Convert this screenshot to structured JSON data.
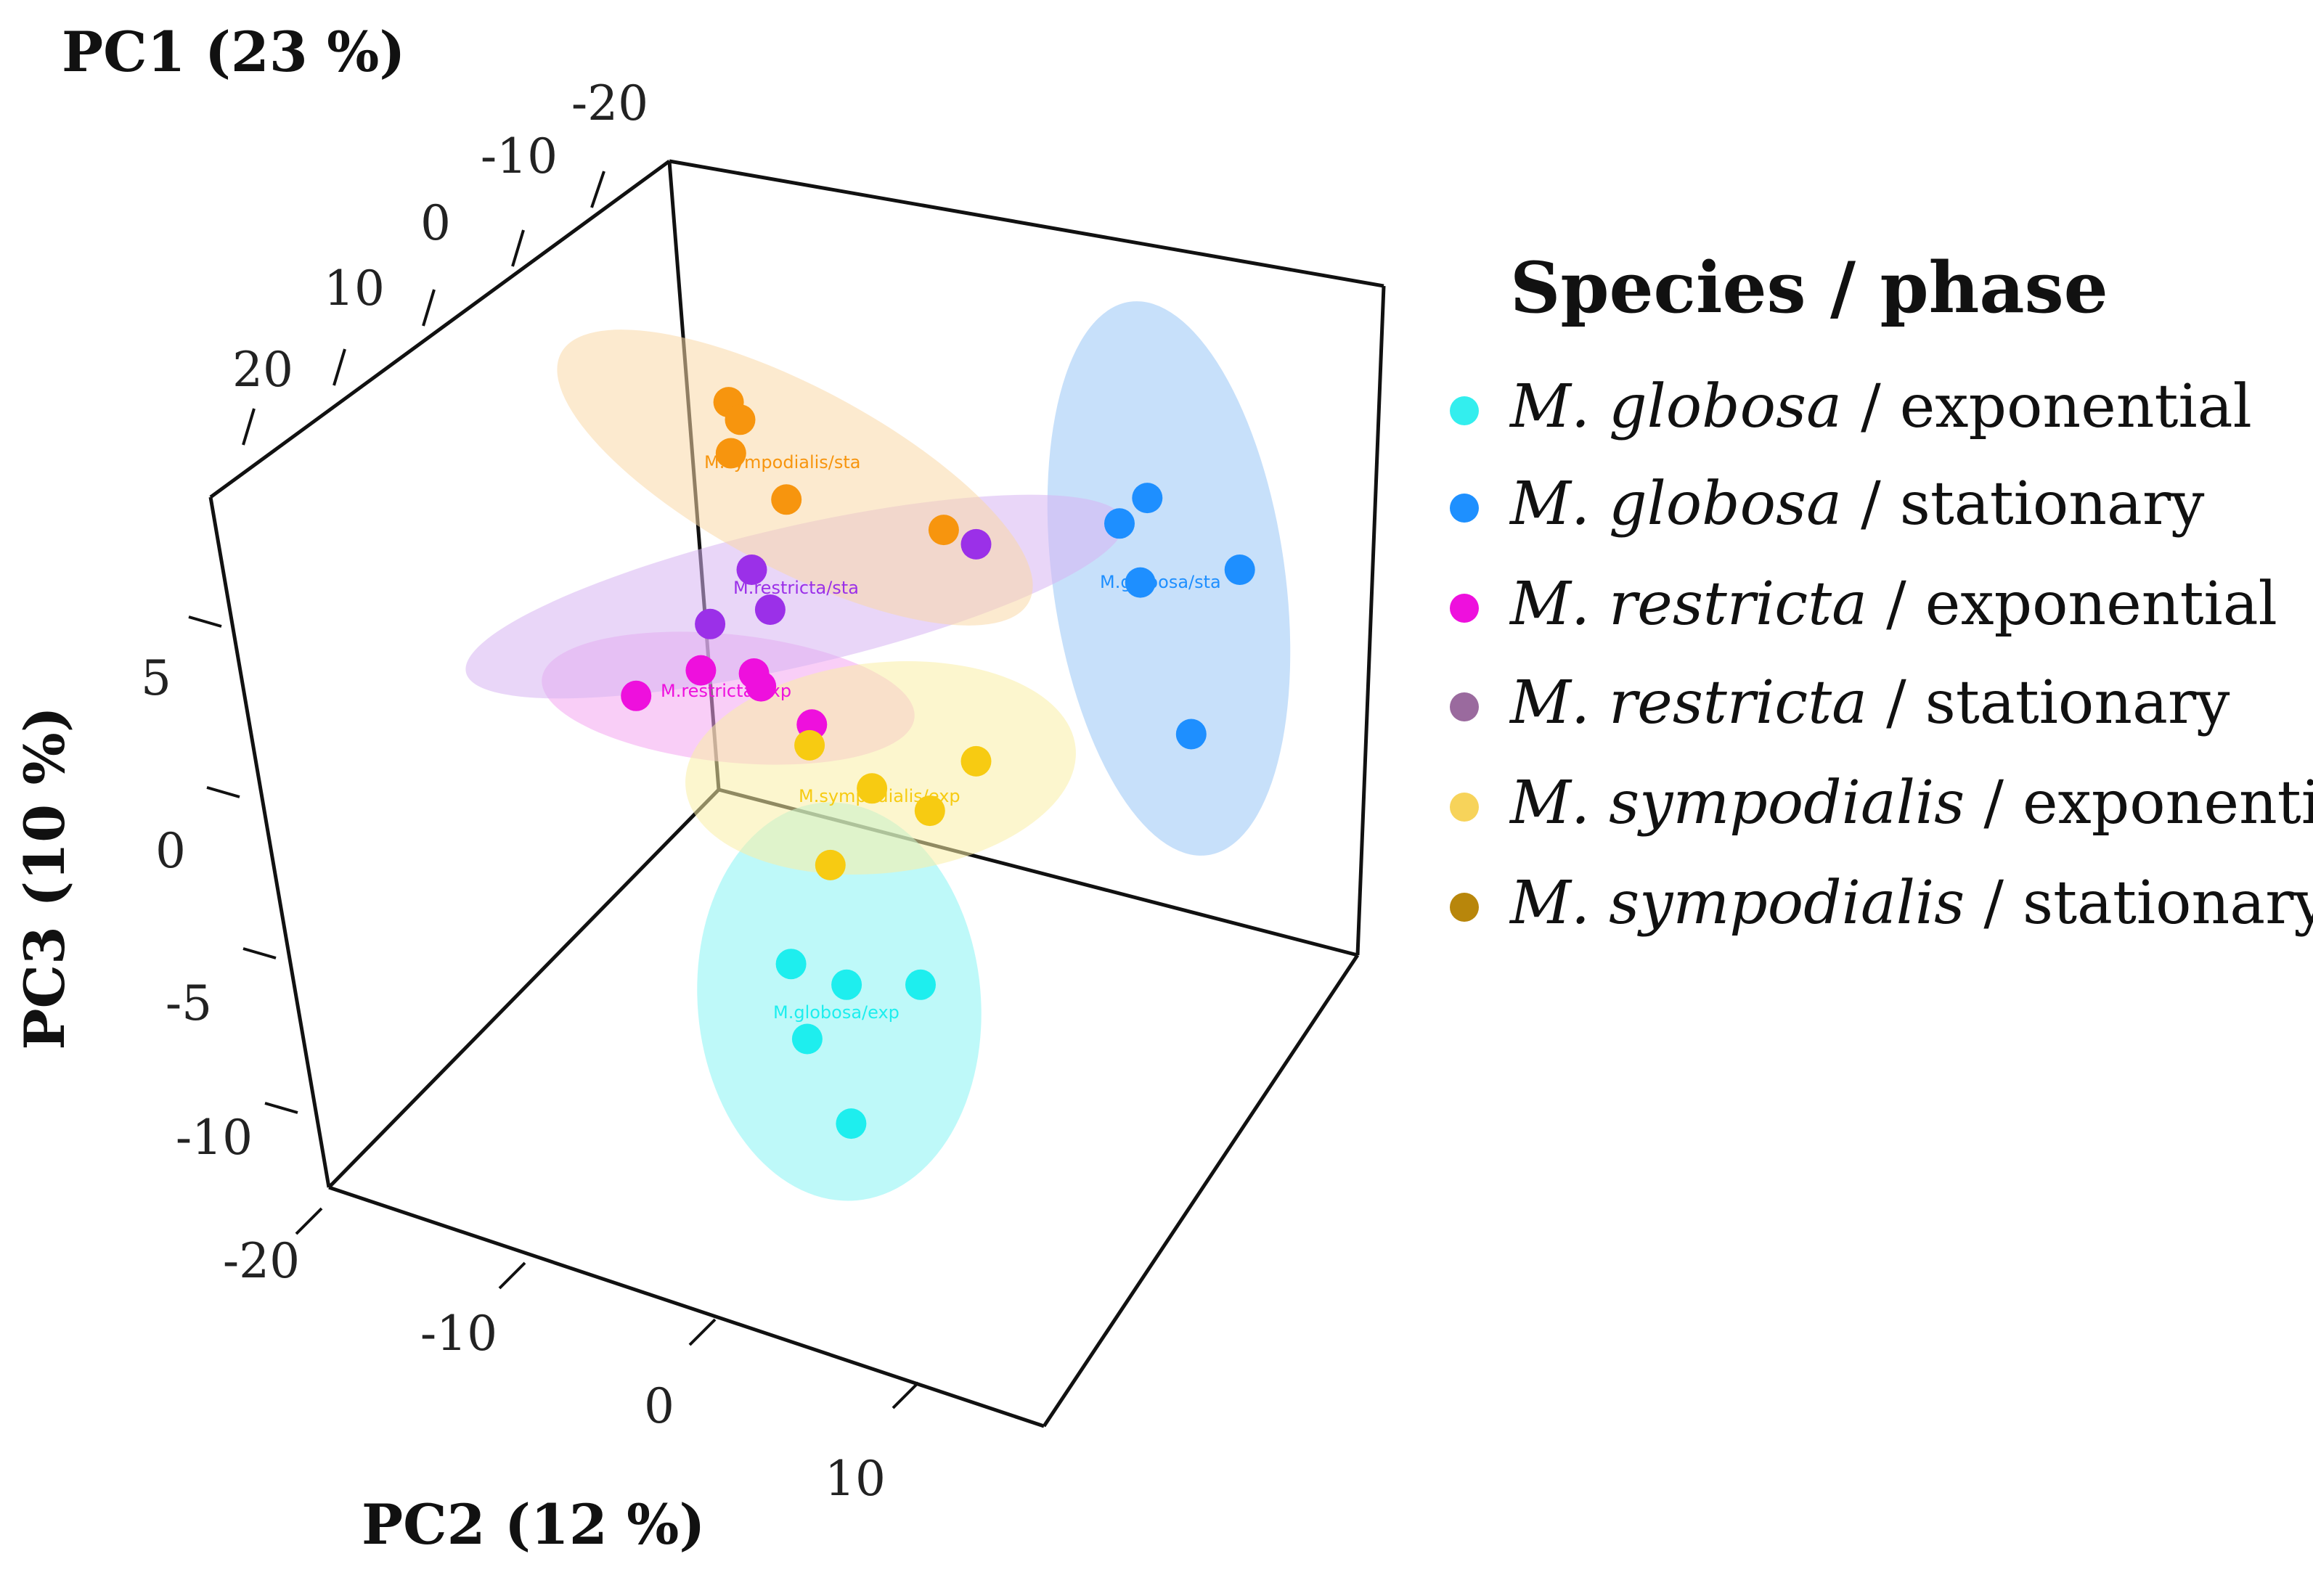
{
  "chart_data": {
    "type": "scatter",
    "subtype": "3d-pca",
    "axes": {
      "pc1": {
        "label": "PC1 (23 %)",
        "ticks": [
          "-20",
          "-10",
          "0",
          "10",
          "20"
        ]
      },
      "pc2": {
        "label": "PC2 (12 %)",
        "ticks": [
          "-20",
          "-10",
          "0",
          "10"
        ]
      },
      "pc3": {
        "label": "PC3 (10 %)",
        "ticks": [
          "5",
          "0",
          "-5",
          "-10"
        ]
      }
    },
    "legend": {
      "title": "Species / phase",
      "position": "right",
      "entries": [
        {
          "species": "M. globosa",
          "phase": "exponential",
          "color": "#33EEEE"
        },
        {
          "species": "M. globosa",
          "phase": "stationary",
          "color": "#1E90FF"
        },
        {
          "species": "M. restricta",
          "phase": "exponential",
          "color": "#EE10DD"
        },
        {
          "species": "M. restricta",
          "phase": "stationary",
          "color": "#9A6A9E"
        },
        {
          "species": "M. sympodialis",
          "phase": "exponential",
          "color": "#F7D35A"
        },
        {
          "species": "M. sympodialis",
          "phase": "stationary",
          "color": "#B8860B"
        }
      ],
      "separator": " / "
    },
    "groups": [
      {
        "name": "M.globosa/exp",
        "color": "#1EEEEE",
        "ellipse_color": "#88F4F4",
        "points": [
          [
            0.342,
            0.604
          ],
          [
            0.366,
            0.617
          ],
          [
            0.398,
            0.617
          ],
          [
            0.349,
            0.651
          ],
          [
            0.368,
            0.704
          ]
        ]
      },
      {
        "name": "M.globosa/sta",
        "color": "#1E8FFF",
        "ellipse_color": "#99C6F5",
        "points": [
          [
            0.496,
            0.312
          ],
          [
            0.484,
            0.328
          ],
          [
            0.493,
            0.365
          ],
          [
            0.536,
            0.357
          ],
          [
            0.515,
            0.46
          ]
        ]
      },
      {
        "name": "M.restricta/exp",
        "color": "#EE10DD",
        "ellipse_color": "#F4A6F0",
        "points": [
          [
            0.275,
            0.436
          ],
          [
            0.303,
            0.42
          ],
          [
            0.326,
            0.422
          ],
          [
            0.329,
            0.43
          ],
          [
            0.351,
            0.454
          ]
        ]
      },
      {
        "name": "M.restricta/sta",
        "color": "#9B30E8",
        "ellipse_color": "#D7B4F2",
        "points": [
          [
            0.325,
            0.357
          ],
          [
            0.333,
            0.382
          ],
          [
            0.307,
            0.391
          ],
          [
            0.422,
            0.341
          ]
        ]
      },
      {
        "name": "M.sympodialis/exp",
        "color": "#F7CB12",
        "ellipse_color": "#FAEFA6",
        "points": [
          [
            0.35,
            0.467
          ],
          [
            0.377,
            0.494
          ],
          [
            0.422,
            0.477
          ],
          [
            0.402,
            0.508
          ],
          [
            0.359,
            0.542
          ]
        ]
      },
      {
        "name": "M.sympodialis/sta",
        "color": "#F7950E",
        "ellipse_color": "#F9D9A8",
        "points": [
          [
            0.315,
            0.252
          ],
          [
            0.32,
            0.263
          ],
          [
            0.316,
            0.284
          ],
          [
            0.34,
            0.313
          ],
          [
            0.408,
            0.332
          ]
        ]
      }
    ],
    "note": "3D projected positions of sample points (normalized to image width/height)"
  }
}
